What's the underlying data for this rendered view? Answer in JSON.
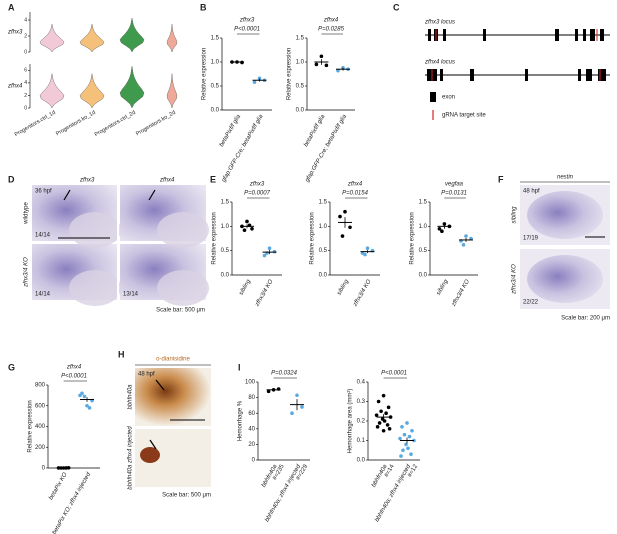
{
  "panel_labels": [
    "A",
    "B",
    "C",
    "D",
    "E",
    "F",
    "G",
    "H",
    "I"
  ],
  "A": {
    "rows": [
      {
        "label": "zfhx3",
        "ylim": [
          0,
          5
        ],
        "yticks": [
          0,
          2,
          4
        ]
      },
      {
        "label": "zfhx4",
        "ylim": [
          0,
          7
        ],
        "yticks": [
          0,
          2,
          4,
          6
        ]
      }
    ],
    "categories": [
      "Progenitors.ctrl_1d",
      "Progenitors.ko_1d",
      "Progenitors.ctrl_2d",
      "Progenitors.ko_2d"
    ],
    "colors": [
      "#f2c9d6",
      "#f5c07a",
      "#3f9a4e",
      "#f0a898"
    ]
  },
  "plots": [
    {
      "gene": "zfhx3",
      "p": "P<0.0001",
      "ylabel": "Relative expression",
      "ylim": [
        0,
        1.5
      ],
      "yticks": [
        {
          "value": 0,
          "label": "0.0"
        },
        {
          "value": 0.5,
          "label": "0.5"
        },
        {
          "value": 1,
          "label": "1.0"
        },
        {
          "value": 1.5,
          "label": "1.5"
        }
      ],
      "groups": [
        {
          "label": "betaPixf/f glia",
          "color": "#000000",
          "points": [
            1.0,
            1.0,
            0.99
          ],
          "mean": 1.0,
          "sem": 0.01
        },
        {
          "label": "gfap:GFP-Cre; betaPixf/f glia",
          "color": "#5aa8e0",
          "points": [
            0.66,
            0.58,
            0.62
          ],
          "mean": 0.62,
          "sem": 0.03
        }
      ]
    },
    {
      "gene": "zfhx4",
      "p": "P=0.0285",
      "ylabel": "Relative expression",
      "ylim": [
        0,
        1.5
      ],
      "yticks": [
        {
          "value": 0,
          "label": "0.0"
        },
        {
          "value": 0.5,
          "label": "0.5"
        },
        {
          "value": 1,
          "label": "1.0"
        },
        {
          "value": 1.5,
          "label": "1.5"
        }
      ],
      "groups": [
        {
          "label": "betaPixf/f glia",
          "color": "#000000",
          "points": [
            1.12,
            0.95,
            0.93
          ],
          "mean": 1.0,
          "sem": 0.06
        },
        {
          "label": "gfap:GFP-Cre; betaPixf/f glia",
          "color": "#5aa8e0",
          "points": [
            0.88,
            0.82,
            0.85
          ],
          "mean": 0.85,
          "sem": 0.03
        }
      ]
    },
    {
      "gene": "zfhx3",
      "p": "P=0.0007",
      "ylabel": "Relative expression",
      "ylim": [
        0,
        1.5
      ],
      "yticks": [
        {
          "value": 0,
          "label": "0.0"
        },
        {
          "value": 0.5,
          "label": "0.5"
        },
        {
          "value": 1,
          "label": "1.0"
        },
        {
          "value": 1.5,
          "label": "1.5"
        }
      ],
      "groups": [
        {
          "label": "sibling",
          "color": "#000000",
          "points": [
            1.1,
            1.0,
            0.95,
            0.92,
            1.02
          ],
          "mean": 1.0,
          "sem": 0.04
        },
        {
          "label": "zfhx3/4 KO",
          "color": "#5aa8e0",
          "points": [
            0.55,
            0.4,
            0.48,
            0.45
          ],
          "mean": 0.47,
          "sem": 0.04
        }
      ]
    },
    {
      "gene": "zfhx4",
      "p": "P=0.0154",
      "ylabel": "Relative expression",
      "ylim": [
        0,
        1.5
      ],
      "yticks": [
        {
          "value": 0,
          "label": "0.0"
        },
        {
          "value": 0.5,
          "label": "0.5"
        },
        {
          "value": 1,
          "label": "1.0"
        },
        {
          "value": 1.5,
          "label": "1.5"
        }
      ],
      "groups": [
        {
          "label": "sibling",
          "color": "#000000",
          "points": [
            1.3,
            1.2,
            0.98,
            0.8
          ],
          "mean": 1.08,
          "sem": 0.11
        },
        {
          "label": "zfhx3/4 KO",
          "color": "#5aa8e0",
          "points": [
            0.55,
            0.45,
            0.5,
            0.42
          ],
          "mean": 0.48,
          "sem": 0.03
        }
      ]
    },
    {
      "gene": "vegfaa",
      "p": "P=0.0131",
      "ylabel": "Relative expression",
      "ylim": [
        0,
        1.5
      ],
      "yticks": [
        {
          "value": 0,
          "label": "0.0"
        },
        {
          "value": 0.5,
          "label": "0.5"
        },
        {
          "value": 1,
          "label": "1.0"
        },
        {
          "value": 1.5,
          "label": "1.5"
        }
      ],
      "groups": [
        {
          "label": "sibling",
          "color": "#000000",
          "points": [
            1.05,
            0.95,
            1.0,
            0.9
          ],
          "mean": 1.0,
          "sem": 0.05
        },
        {
          "label": "zfhx3/4 KO",
          "color": "#5aa8e0",
          "points": [
            0.8,
            0.7,
            0.75,
            0.62
          ],
          "mean": 0.72,
          "sem": 0.04
        }
      ]
    },
    {
      "gene": "zfhx4",
      "p": "P<0.0001",
      "ylabel": "Relative expression",
      "ylim": [
        0,
        800
      ],
      "yticks": [
        0,
        200,
        400,
        600,
        800
      ],
      "groups": [
        {
          "label": "betaPix KO",
          "color": "#000000",
          "points": [
            0,
            1,
            2,
            0,
            1
          ],
          "mean": 1,
          "sem": 0.5
        },
        {
          "label": "betaPix KO; zfhx4 injected",
          "color": "#5aa8e0",
          "points": [
            600,
            720,
            650,
            690,
            580,
            700
          ],
          "mean": 660,
          "sem": 22
        }
      ]
    },
    {
      "p": "P=0.0324",
      "ylabel": "Hemorrhage %",
      "ylim": [
        0,
        100
      ],
      "yticks": [
        0,
        20,
        40,
        60,
        80,
        100
      ],
      "groups": [
        {
          "label": "bbhfn40a",
          "n": "#=235",
          "color": "#000000",
          "points": [
            90,
            88,
            91
          ],
          "mean": 90,
          "sem": 1
        },
        {
          "label": "bbhfn40a; zfhx4 injected",
          "n": "#=229",
          "color": "#5aa8e0",
          "points": [
            83,
            60,
            68
          ],
          "mean": 71,
          "sem": 7
        }
      ]
    },
    {
      "p": "P<0.0001",
      "ylabel": "Hemorrhage area (mm²)",
      "ylim": [
        0,
        0.4
      ],
      "yticks": [
        {
          "value": 0,
          "label": "0.0"
        },
        0.1,
        0.2,
        0.3,
        0.4
      ],
      "groups": [
        {
          "label": "bbhfn40a",
          "n": "#=14",
          "color": "#000000",
          "points": [
            0.33,
            0.3,
            0.27,
            0.25,
            0.24,
            0.23,
            0.22,
            0.21,
            0.2,
            0.19,
            0.18,
            0.17,
            0.16,
            0.15
          ],
          "mean": 0.22,
          "sem": 0.015
        },
        {
          "label": "bbhfn40a; zfhx4 injected",
          "n": "#=12",
          "color": "#5aa8e0",
          "points": [
            0.19,
            0.17,
            0.15,
            0.13,
            0.12,
            0.11,
            0.1,
            0.08,
            0.06,
            0.05,
            0.03,
            0.02
          ],
          "mean": 0.1,
          "sem": 0.015
        }
      ]
    }
  ],
  "C": {
    "loci": [
      "zfhx3 locus",
      "zfhx4 locus"
    ],
    "legend": [
      "exon",
      "gRNA target site"
    ]
  },
  "D": {
    "genes": [
      "zfhx3",
      "zfhx4"
    ],
    "stage": "36 hpf",
    "rows": [
      "wildtype",
      "zfhx3/4 KO"
    ],
    "counts": [
      "14/14",
      "14/14",
      "13/14"
    ],
    "scale": "Scale bar: 500 μm"
  },
  "F": {
    "gene": "nestin",
    "stage": "48 hpf",
    "rows": [
      "sibling",
      "zfhx3/4 KO"
    ],
    "counts": [
      "17/19",
      "22/22"
    ],
    "scale": "Scale bar: 200 μm"
  },
  "H": {
    "stain": "o-dianisidine",
    "stage": "48 hpf",
    "rows": [
      "bbhfn40a",
      "bbhfn40a zfhx4 injected"
    ],
    "scale": "Scale bar: 500 μm"
  }
}
